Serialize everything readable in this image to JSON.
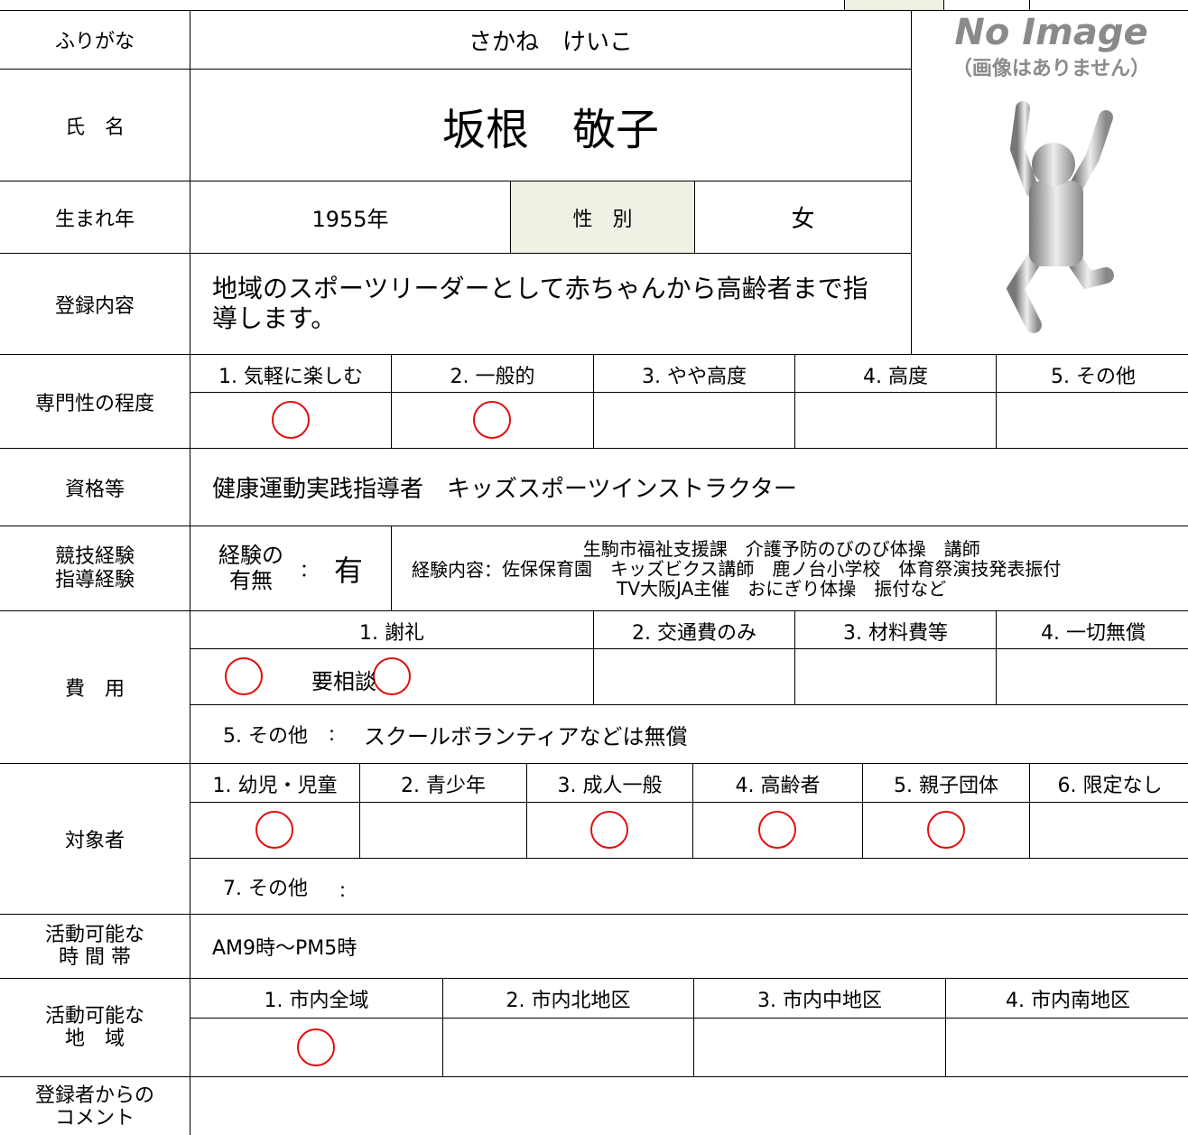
{
  "furigana": {
    "label": "ふりがな",
    "value": "さかね　けいこ"
  },
  "name": {
    "label": "氏　名",
    "value": "坂根　敬子"
  },
  "birth": {
    "label": "生まれ年",
    "value": "1955年",
    "sex_label": "性　別",
    "sex": "女"
  },
  "photo": {
    "title": "No Image",
    "note": "（画像はありません）"
  },
  "registration": {
    "label": "登録内容",
    "value": "地域のスポーツリーダーとして赤ちゃんから高齢者まで指導します。"
  },
  "expertise": {
    "label": "専門性の程度",
    "options": [
      "1. 気軽に楽しむ",
      "2. 一般的",
      "3. やや高度",
      "4. 高度",
      "5. その他"
    ],
    "circled": [
      true,
      true,
      false,
      false,
      false
    ]
  },
  "qualifications": {
    "label": "資格等",
    "value": "健康運動実践指導者　キッズスポーツインストラクター"
  },
  "experience": {
    "label_lines": [
      "競技経験",
      "指導経験"
    ],
    "has_lines": [
      "経験の",
      "有無"
    ],
    "separator": "：",
    "has": "有",
    "content_label": "経験内容：",
    "content_lines": [
      "生駒市福祉支援課　介護予防のびのび体操　講師",
      "佐保保育園　キッズビクス講師　鹿ノ台小学校　体育祭演技発表振付",
      "TV大阪JA主催　おにぎり体操　振付など"
    ]
  },
  "fee": {
    "label": "費　用",
    "options": [
      "1. 謝礼",
      "2. 交通費のみ",
      "3. 材料費等",
      "4. 一切無償"
    ],
    "circled": [
      true,
      false,
      false,
      false
    ],
    "note": "要相談",
    "other_label": "5. その他",
    "separator": "：",
    "other": "スクールボランティアなどは無償"
  },
  "target": {
    "label": "対象者",
    "options": [
      "1. 幼児・児童",
      "2. 青少年",
      "3. 成人一般",
      "4. 高齢者",
      "5. 親子団体",
      "6. 限定なし"
    ],
    "circled": [
      true,
      false,
      true,
      true,
      true,
      false
    ],
    "other_label": "7. その他",
    "separator": "："
  },
  "hours": {
    "label_lines": [
      "活動可能な",
      "時 間 帯"
    ],
    "value": "AM9時～PM5時"
  },
  "area": {
    "label_lines": [
      "活動可能な",
      "地　域"
    ],
    "options": [
      "1. 市内全域",
      "2. 市内北地区",
      "3. 市内中地区",
      "4. 市内南地区"
    ],
    "circled": [
      true,
      false,
      false,
      false
    ]
  },
  "comment": {
    "label_lines": [
      "登録者からの",
      "コメント"
    ]
  }
}
